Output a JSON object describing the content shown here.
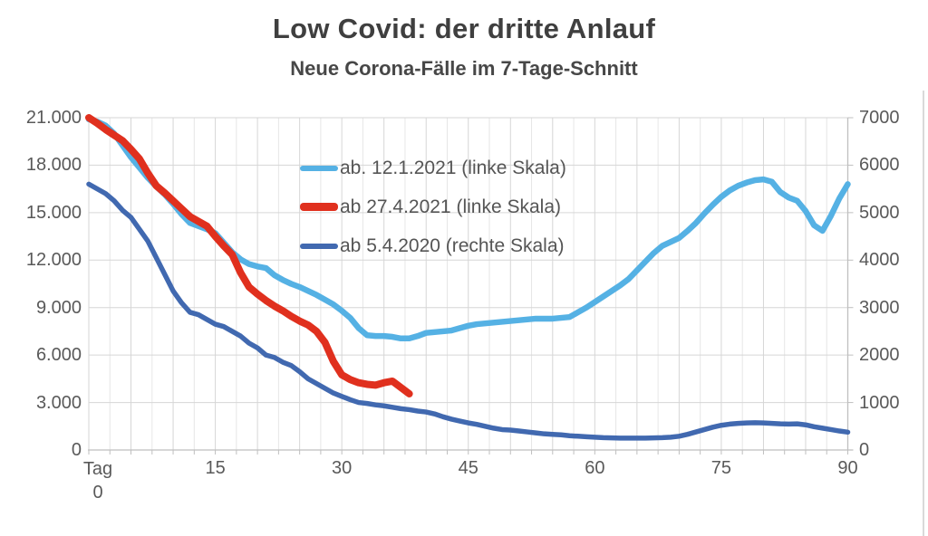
{
  "title": "Low Covid: der dritte Anlauf",
  "subtitle": "Neue Corona-Fälle im 7-Tage-Schnitt",
  "chart_data": {
    "type": "line",
    "title": "Low Covid: der dritte Anlauf",
    "subtitle": "Neue Corona-Fälle im 7-Tage-Schnitt",
    "grid": true,
    "legend_position": "top-center-inside",
    "x_corner_label": {
      "line1": "Tag",
      "line2": "0"
    },
    "x_axis": {
      "min": 0,
      "max": 90,
      "tick_values": [
        15,
        30,
        45,
        60,
        75,
        90
      ],
      "tick_labels": [
        "15",
        "30",
        "45",
        "60",
        "75",
        "90"
      ],
      "minor_grid_step": 2.5,
      "major_grid_step": 5
    },
    "left_axis": {
      "min": 0,
      "max": 21000,
      "step": 3000,
      "tick_labels_top_to_bottom": [
        "21.000",
        "18.000",
        "15.000",
        "12.000",
        "9.000",
        "6.000",
        "3.000",
        "0"
      ]
    },
    "right_axis": {
      "min": 0,
      "max": 7000,
      "step": 1000,
      "tick_labels_top_to_bottom": [
        "7000",
        "6000",
        "5000",
        "4000",
        "3000",
        "2000",
        "1000",
        "0"
      ]
    },
    "colors": {
      "grid_major": "#d6d6d6",
      "grid_minor": "#e6e6e6",
      "axis_line": "#bfbfbf",
      "tick_text": "#595959",
      "title_text": "#3f3f3f"
    },
    "series": [
      {
        "name": "ab. 12.1.2021 (linke Skala)",
        "axis": "left",
        "color": "#55B1E4",
        "width": 6.5,
        "x_start": 0,
        "x_step": 1,
        "values": [
          20900,
          20750,
          20500,
          20000,
          19250,
          18500,
          17850,
          17200,
          16650,
          16150,
          15550,
          14900,
          14350,
          14150,
          13950,
          13700,
          13100,
          12500,
          12050,
          11750,
          11600,
          11500,
          11050,
          10750,
          10500,
          10300,
          10050,
          9800,
          9500,
          9200,
          8800,
          8350,
          7700,
          7250,
          7200,
          7200,
          7150,
          7050,
          7050,
          7200,
          7400,
          7450,
          7500,
          7550,
          7700,
          7850,
          7950,
          8000,
          8050,
          8100,
          8150,
          8200,
          8250,
          8300,
          8300,
          8300,
          8350,
          8400,
          8700,
          9000,
          9350,
          9700,
          10050,
          10400,
          10800,
          11350,
          11900,
          12450,
          12900,
          13150,
          13400,
          13850,
          14350,
          14950,
          15500,
          16000,
          16400,
          16700,
          16900,
          17050,
          17100,
          16950,
          16300,
          15950,
          15750,
          15100,
          14200,
          13850,
          14800,
          15900,
          16800
        ]
      },
      {
        "name": "ab 27.4.2021 (linke Skala)",
        "axis": "left",
        "color": "#E0301E",
        "width": 8,
        "x_start": 0,
        "x_step": 1,
        "values": [
          21000,
          20650,
          20250,
          19900,
          19550,
          19000,
          18400,
          17500,
          16700,
          16250,
          15750,
          15250,
          14750,
          14450,
          14150,
          13500,
          12900,
          12350,
          11200,
          10300,
          9850,
          9450,
          9100,
          8800,
          8450,
          8150,
          7900,
          7500,
          6800,
          5600,
          4750,
          4450,
          4250,
          4150,
          4100,
          4250,
          4350,
          3950,
          3550
        ]
      },
      {
        "name": "ab 5.4.2020 (rechte Skala)",
        "axis": "right",
        "color": "#4169B0",
        "width": 5.5,
        "x_start": 0,
        "x_step": 1,
        "values": [
          5600,
          5500,
          5400,
          5250,
          5050,
          4900,
          4650,
          4400,
          4050,
          3700,
          3350,
          3100,
          2900,
          2850,
          2750,
          2650,
          2600,
          2500,
          2400,
          2250,
          2150,
          2000,
          1950,
          1850,
          1780,
          1650,
          1500,
          1400,
          1300,
          1200,
          1130,
          1060,
          1000,
          980,
          950,
          930,
          900,
          870,
          850,
          820,
          800,
          760,
          700,
          650,
          610,
          570,
          540,
          500,
          460,
          430,
          420,
          400,
          380,
          360,
          340,
          330,
          320,
          300,
          290,
          280,
          270,
          260,
          255,
          250,
          250,
          250,
          250,
          255,
          260,
          270,
          290,
          330,
          380,
          430,
          480,
          520,
          545,
          560,
          570,
          575,
          570,
          560,
          550,
          545,
          550,
          530,
          490,
          460,
          430,
          400,
          375
        ]
      }
    ]
  }
}
